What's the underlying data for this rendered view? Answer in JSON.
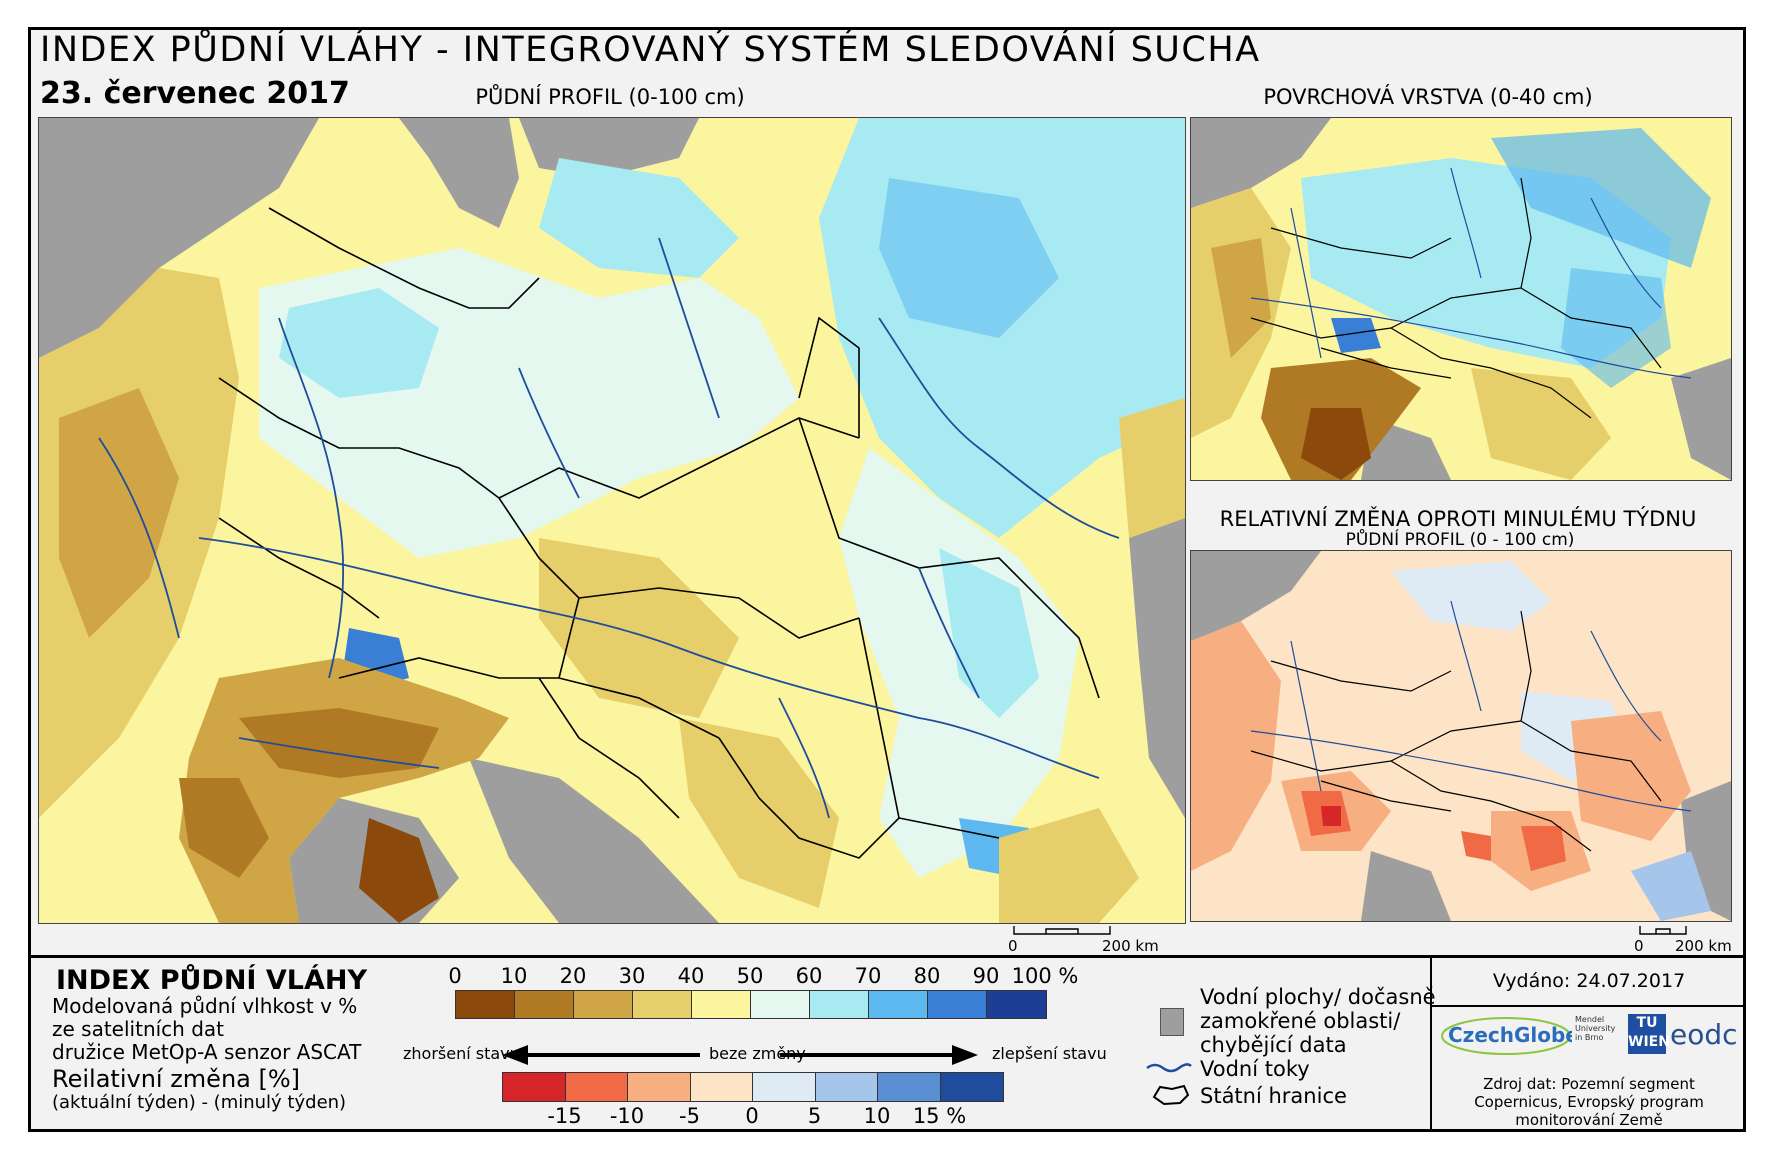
{
  "header": {
    "title": "INDEX PŮDNÍ VLÁHY - INTEGROVANÝ SYSTÉM SLEDOVÁNÍ SUCHA",
    "date": "23. červenec 2017"
  },
  "maps": {
    "main_label": "PŮDNÍ PROFIL (0-100 cm)",
    "surface_label": "POVRCHOVÁ VRSTVA (0-40 cm)",
    "change_label": "RELATIVNÍ ZMĚNA OPROTI MINULÉMU TÝDNU",
    "change_sublabel": "PŮDNÍ PROFIL (0 - 100 cm)",
    "scale_left": {
      "zero": "0",
      "max": "200 km"
    },
    "scale_right": {
      "zero": "0",
      "max": "200 km"
    }
  },
  "legend": {
    "title": "INDEX PŮDNÍ VLÁHY",
    "desc_lines": [
      "Modelovaná půdní vlhkost v %",
      "ze satelitních dat",
      "družice MetOp-A senzor ASCAT"
    ],
    "change_title": "Reilativní změna [%]",
    "change_sub": "(aktuální týden) - (minulý týden)",
    "moisture_ticks": [
      "0",
      "10",
      "20",
      "30",
      "40",
      "50",
      "60",
      "70",
      "80",
      "90",
      "100 %"
    ],
    "moisture_colors": [
      "#8b4a0c",
      "#b07a25",
      "#cfa545",
      "#e6cf6a",
      "#fbf5a0",
      "#e4f8f0",
      "#a7eaf2",
      "#5db8f0",
      "#3a7fd6",
      "#1c3f95"
    ],
    "change_ticks": [
      "-15",
      "-10",
      "-5",
      "0",
      "5",
      "10",
      "15 %"
    ],
    "change_colors": [
      "#d7262a",
      "#f06a46",
      "#f7ae80",
      "#fde4c6",
      "#deebf5",
      "#a6c5ea",
      "#5b8fd4",
      "#1f4c9c"
    ],
    "arrow_left": "zhoršení stavu",
    "arrow_mid": "beze změny",
    "arrow_right": "zlepšení stavu",
    "key_water_lines": [
      "Vodní plochy/ dočasně",
      "zamokřené oblasti/",
      "chybějící data"
    ],
    "key_rivers": "Vodní toky",
    "key_borders": "Státní hranice"
  },
  "footer": {
    "issued": "Vydáno: 24.07.2017",
    "logos": {
      "czechglobe": "CzechGlobe",
      "mendel": "Mendel University in Brno",
      "tu": "TU WIEN",
      "eodc": "eodc"
    },
    "source_lines": [
      "Zdroj dat: Pozemní segment",
      "Copernicus, Evropský program",
      "monitorování Země"
    ]
  }
}
